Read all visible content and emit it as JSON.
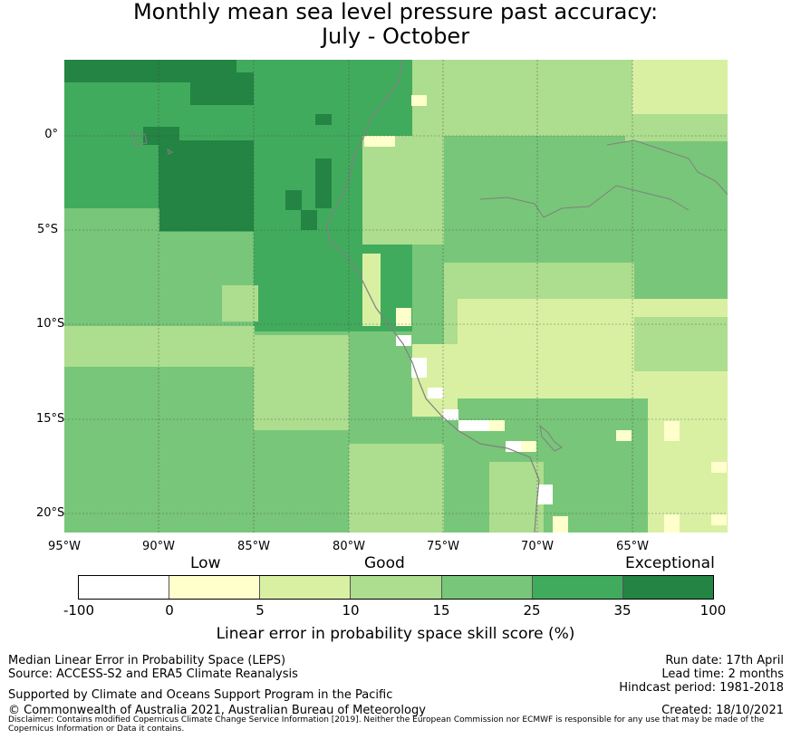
{
  "title": {
    "line1": "Monthly mean sea level pressure past accuracy:",
    "line2": "July - October"
  },
  "map": {
    "lat_labels": [
      "0°",
      "5°S",
      "10°S",
      "15°S",
      "20°S"
    ],
    "lon_labels": [
      "95°W",
      "90°W",
      "85°W",
      "80°W",
      "75°W",
      "70°W",
      "65°W"
    ],
    "extent": {
      "lon_min": -95,
      "lon_max": -60,
      "lat_min": -21,
      "lat_max": 4
    }
  },
  "legend": {
    "categories": [
      "Low",
      "Good",
      "Exceptional"
    ],
    "ticks": [
      "-100",
      "0",
      "5",
      "10",
      "15",
      "25",
      "35",
      "100"
    ],
    "colors": [
      "#ffffff",
      "#ffffcc",
      "#d9f0a3",
      "#addd8e",
      "#78c679",
      "#41ab5d",
      "#238443"
    ],
    "label": "Linear error in probability space skill score (%)"
  },
  "footer": {
    "left1": "Median Linear Error in Probability Space (LEPS)",
    "left2": "Source: ACCESS-S2 and ERA5 Climate Reanalysis",
    "left3": "Supported by Climate and Oceans Support Program in the Pacific",
    "left4": "© Commonwealth of Australia 2021, Australian Bureau of Meteorology",
    "right1": "Run date: 17th April",
    "right2": "Lead time: 2 months",
    "right3": "Hindcast period: 1981-2018",
    "right4": "Created: 18/10/2021",
    "disclaimer": "Disclaimer: Contains modified Copernicus Climate Change Service Information [2019]. Neither the European Commission nor ECMWF is responsible for any use that may be made of the Copernicus Information or Data it contains."
  }
}
